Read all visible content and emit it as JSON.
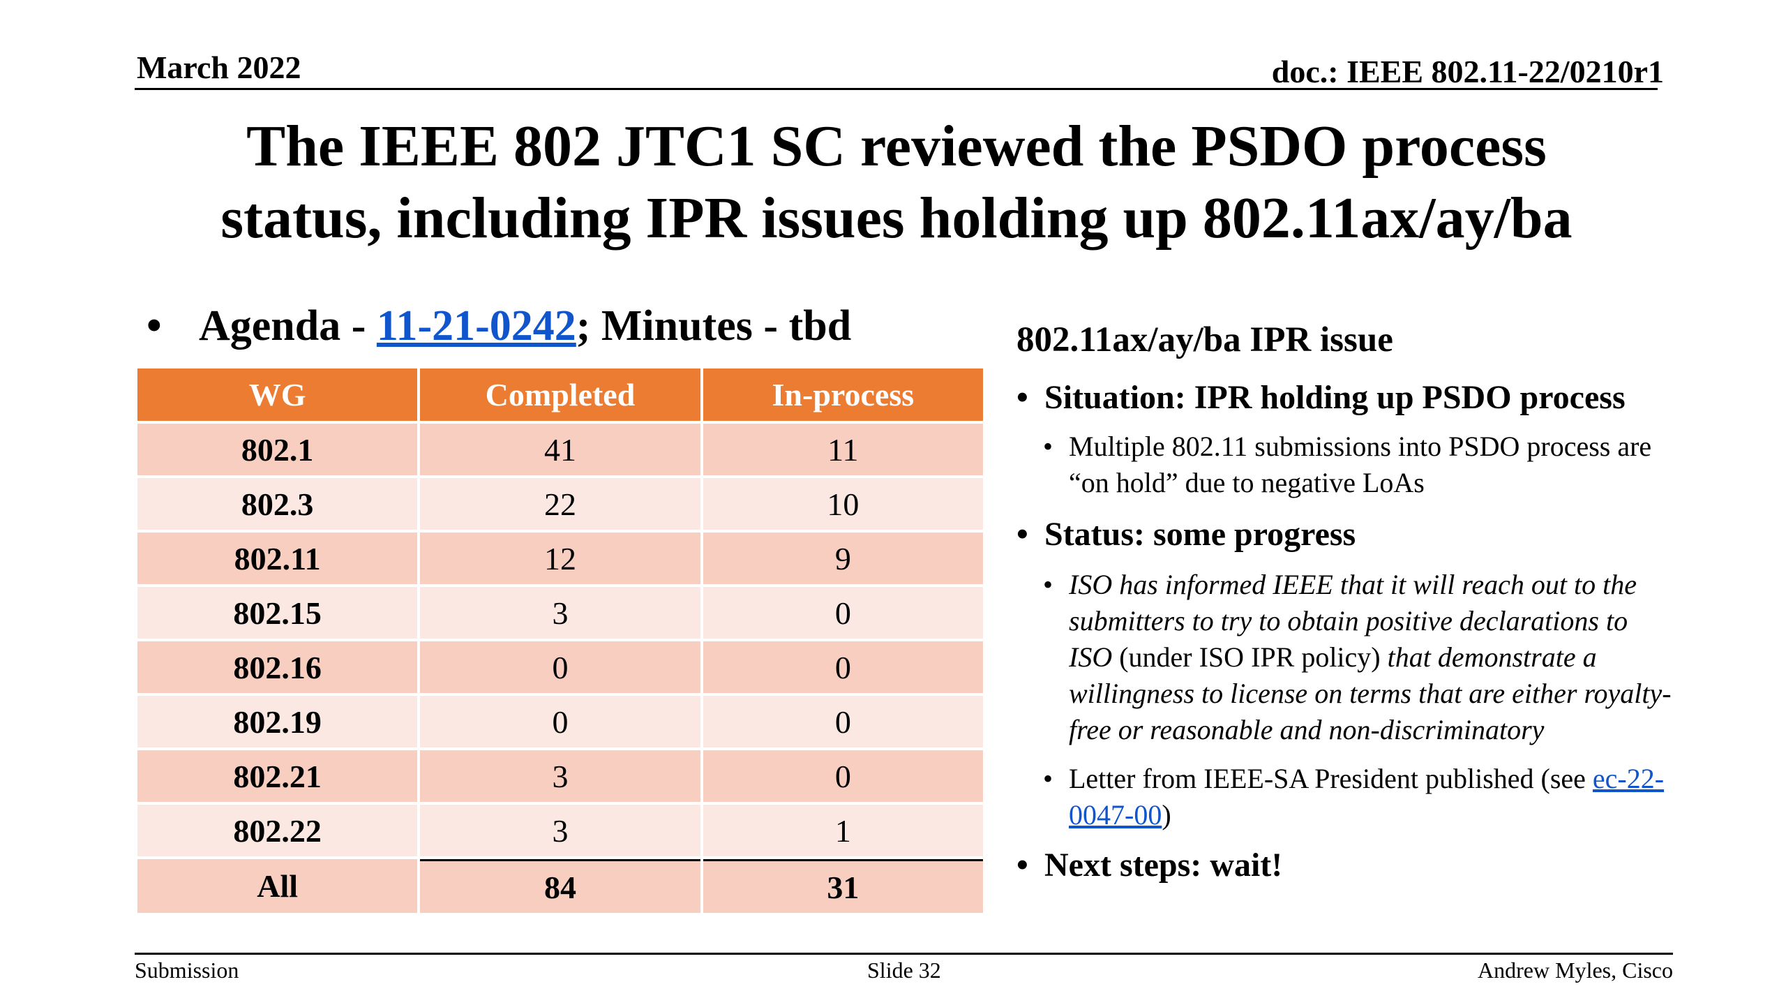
{
  "header": {
    "date": "March 2022",
    "doc": "doc.: IEEE 802.11-22/0210r1"
  },
  "title": {
    "line1": "The IEEE 802 JTC1 SC reviewed the PSDO process",
    "line2": "status, including IPR issues holding up 802.11ax/ay/ba"
  },
  "agenda": {
    "prefix": "Agenda - ",
    "link": "11-21-0242",
    "suffix": "; Minutes - tbd"
  },
  "table": {
    "headers": [
      "WG",
      "Completed",
      "In-process"
    ],
    "rows": [
      {
        "wg": "802.1",
        "completed": "41",
        "inprocess": "11"
      },
      {
        "wg": "802.3",
        "completed": "22",
        "inprocess": "10"
      },
      {
        "wg": "802.11",
        "completed": "12",
        "inprocess": "9"
      },
      {
        "wg": "802.15",
        "completed": "3",
        "inprocess": "0"
      },
      {
        "wg": "802.16",
        "completed": "0",
        "inprocess": "0"
      },
      {
        "wg": "802.19",
        "completed": "0",
        "inprocess": "0"
      },
      {
        "wg": "802.21",
        "completed": "3",
        "inprocess": "0"
      },
      {
        "wg": "802.22",
        "completed": "3",
        "inprocess": "1"
      }
    ],
    "total": {
      "wg": "All",
      "completed": "84",
      "inprocess": "31"
    }
  },
  "right": {
    "heading": "802.11ax/ay/ba IPR issue",
    "situation": "Situation: IPR holding up PSDO process",
    "situation_detail": "Multiple 802.11 submissions into PSDO process are “on hold” due to negative LoAs",
    "status": "Status: some progress",
    "iso_italic1": "ISO has informed IEEE that it will reach out to the submitters to try to obtain positive declarations to ISO",
    "iso_plain": " (under ISO IPR policy) ",
    "iso_italic2": "that demonstrate a willingness to license on terms that are either royalty-free or reasonable and non-discriminatory",
    "letter_prefix": "Letter from IEEE-SA President published (see ",
    "letter_link": "ec-22-0047-00",
    "letter_suffix": ")",
    "next_steps": "Next steps: wait!"
  },
  "footer": {
    "left": "Submission",
    "center": "Slide 32",
    "right": "Andrew Myles, Cisco"
  },
  "colors": {
    "header_orange": "#ec7c31",
    "row_dark": "#f7cec0",
    "row_light": "#fbe8e2",
    "link": "#1155cc"
  }
}
